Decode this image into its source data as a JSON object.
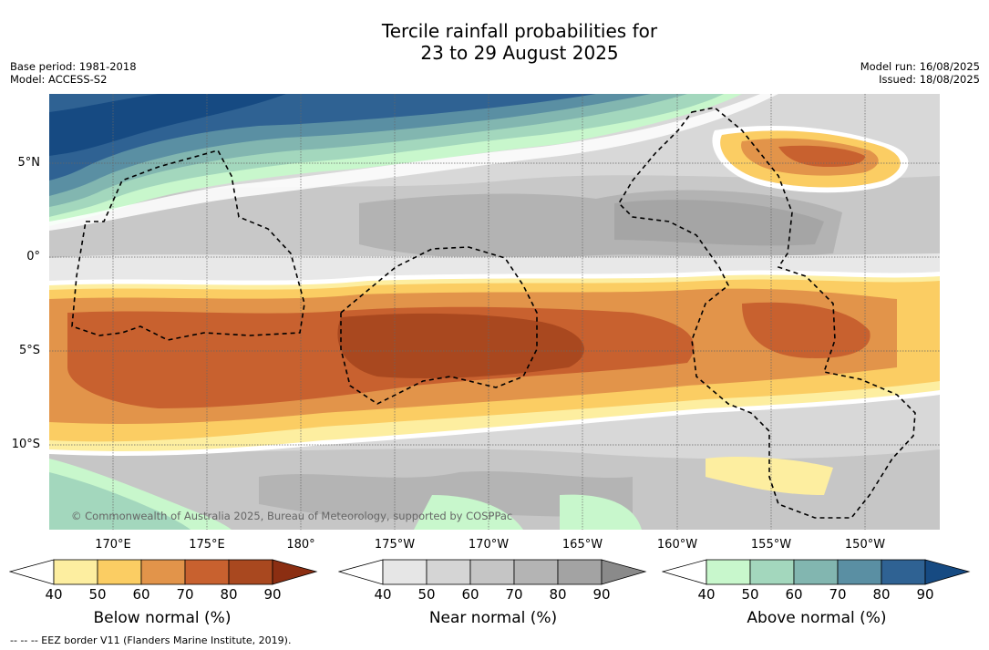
{
  "title": {
    "line1": "Tercile rainfall probabilities for",
    "line2": "23 to 29 August 2025"
  },
  "meta_left": {
    "base_period": "Base period: 1981-2018",
    "model": "Model: ACCESS-S2"
  },
  "meta_right": {
    "model_run": "Model run: 16/08/2025",
    "issued": "Issued: 18/08/2025"
  },
  "map": {
    "copyright": "© Commonwealth of Australia 2025, Bureau of Meteorology, supported by COSPPac",
    "lat_labels": [
      "5°N",
      "0°",
      "5°S",
      "10°S"
    ],
    "lon_labels": [
      "170°E",
      "175°E",
      "180°",
      "175°W",
      "170°W",
      "165°W",
      "160°W",
      "155°W",
      "150°W"
    ]
  },
  "colorbars": [
    {
      "label": "Below normal (%)",
      "ticks": [
        "40",
        "50",
        "60",
        "70",
        "80",
        "90"
      ],
      "colors": [
        "#ffffff",
        "#fdeea0",
        "#fbcd63",
        "#e2944a",
        "#c8612f",
        "#a9481f",
        "#8b2e12"
      ]
    },
    {
      "label": "Near normal (%)",
      "ticks": [
        "40",
        "50",
        "60",
        "70",
        "80",
        "90"
      ],
      "colors": [
        "#ffffff",
        "#e6e6e6",
        "#d5d5d5",
        "#c5c5c5",
        "#b4b4b4",
        "#a3a3a3",
        "#8a8a8a"
      ]
    },
    {
      "label": "Above normal (%)",
      "ticks": [
        "40",
        "50",
        "60",
        "70",
        "80",
        "90"
      ],
      "colors": [
        "#ffffff",
        "#c8f7cc",
        "#a3d7bd",
        "#82b6b0",
        "#5a8fa3",
        "#2f6293",
        "#164a82"
      ]
    }
  ],
  "footer": "--  --  -- EEZ border V11 (Flanders Marine Institute, 2019)."
}
